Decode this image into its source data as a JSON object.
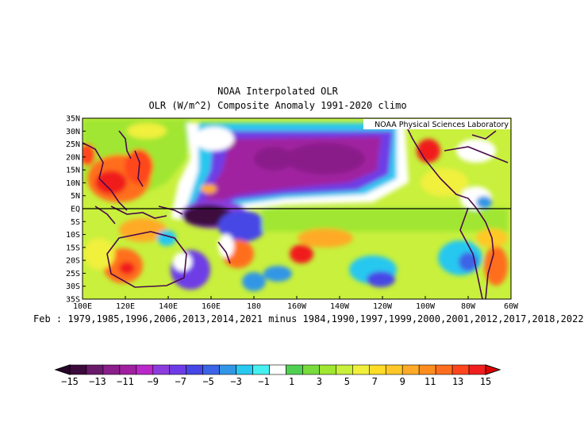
{
  "header": {
    "title": "NOAA Interpolated OLR",
    "subtitle": "OLR (W/m^2) Composite Anomaly 1991-2020 climo"
  },
  "map": {
    "credit": "NOAA Physical Sciences Laboratory",
    "lat_labels": [
      "35N",
      "30N",
      "25N",
      "20N",
      "15N",
      "10N",
      "5N",
      "EQ",
      "5S",
      "10S",
      "15S",
      "20S",
      "25S",
      "30S",
      "35S"
    ],
    "lon_labels": [
      "100E",
      "120E",
      "140E",
      "160E",
      "180",
      "160W",
      "140W",
      "120W",
      "100W",
      "80W",
      "60W"
    ],
    "lon_range": [
      "100E",
      "60W"
    ],
    "lat_range": [
      "35S",
      "35N"
    ],
    "equator_line": true
  },
  "caption": "Feb : 1979,1985,1996,2006,2013,2014,2021 minus 1984,1990,1997,1999,2000,2001,2012,2017,2018,2022",
  "colorbar": {
    "labels": [
      "-15",
      "-13",
      "-11",
      "-9",
      "-7",
      "-5",
      "-3",
      "-1",
      "1",
      "3",
      "5",
      "7",
      "9",
      "11",
      "13",
      "15"
    ],
    "colors": [
      "#3c0a3c",
      "#6a1a6a",
      "#8a1e8a",
      "#a020a0",
      "#b928c8",
      "#8c3cdc",
      "#6e3ce6",
      "#4646e6",
      "#3c64e6",
      "#3296e6",
      "#28c8f0",
      "#46f0f0",
      "#ffffff",
      "#50d050",
      "#78dc3c",
      "#a0e632",
      "#c8f03c",
      "#f0f03c",
      "#ffdc28",
      "#ffc828",
      "#ffaa28",
      "#ff8c1e",
      "#ff6e1e",
      "#ff461e",
      "#f01e1e"
    ]
  }
}
